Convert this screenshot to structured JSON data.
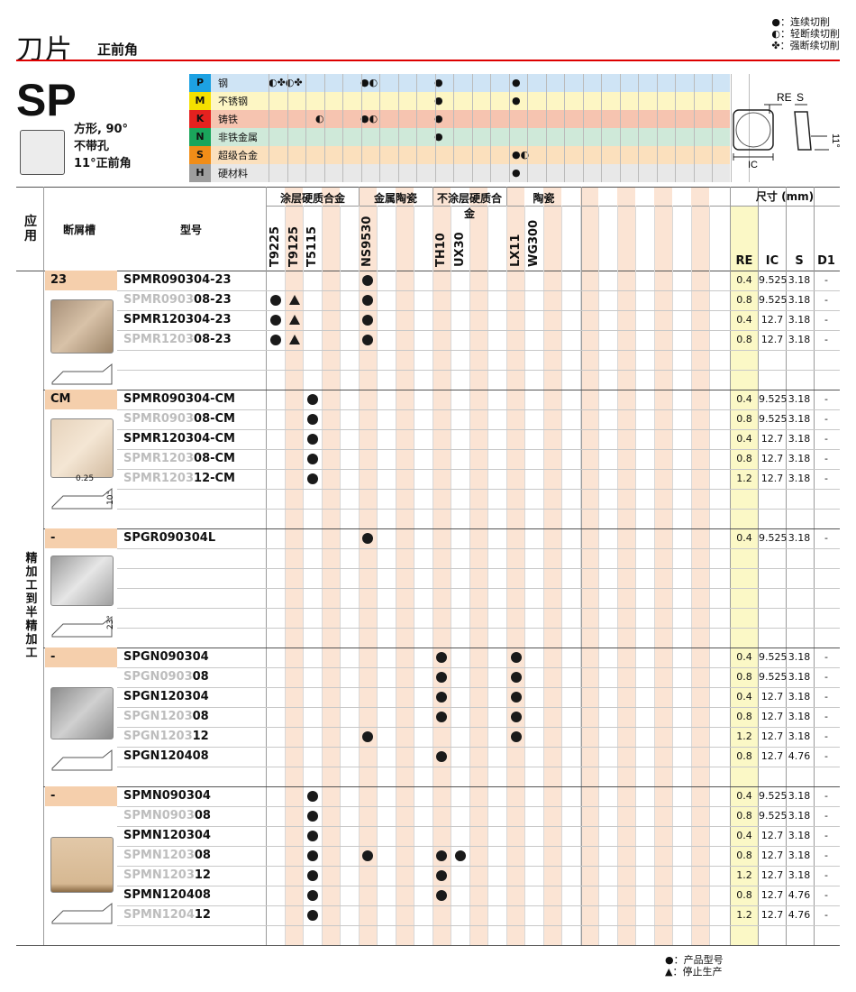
{
  "header": {
    "title": "刀片",
    "subtitle": "正前角"
  },
  "legend_top": [
    "●：连续切削",
    "◐：轻断续切削",
    "✤：强断续切削"
  ],
  "insert": {
    "code": "SP",
    "desc": [
      "方形, 90°",
      "不带孔",
      "11°正前角"
    ]
  },
  "materials": [
    {
      "code": "P",
      "name": "钢",
      "color": "#1da1e2"
    },
    {
      "code": "M",
      "name": "不锈钢",
      "color": "#f4e000"
    },
    {
      "code": "K",
      "name": "铸铁",
      "color": "#e5211f"
    },
    {
      "code": "N",
      "name": "非铁金属",
      "color": "#1aa55b"
    },
    {
      "code": "S",
      "name": "超级合金",
      "color": "#f18d18"
    },
    {
      "code": "H",
      "name": "硬材料",
      "color": "#9d9d9d"
    }
  ],
  "material_row_bg": [
    "#cfe4f5",
    "#fdf6c4",
    "#f6c4b0",
    "#cfe9d9",
    "#fbe0bd",
    "#e8e8e8"
  ],
  "material_marks": {
    "P": [
      "◐✤◐✤",
      "",
      "●◐",
      "●",
      "●"
    ],
    "M": [
      "",
      "",
      "",
      "●",
      "●"
    ],
    "K": [
      "",
      "◐",
      "●◐",
      "●",
      ""
    ],
    "N": [
      "",
      "",
      "",
      "●",
      ""
    ],
    "S": [
      "",
      "",
      "",
      "",
      "●◐"
    ],
    "H": [
      "",
      "",
      "",
      "",
      "●"
    ]
  },
  "schematic_labels": {
    "re": "RE",
    "s": "S",
    "ic": "IC",
    "angle": "11°"
  },
  "table_headers": {
    "application": "应用",
    "chipbreaker": "断屑槽",
    "model": "型号",
    "coated_carbide": "涂层硬质合金",
    "cermet": "金属陶瓷",
    "uncoated_carbide": "不涂层硬质合金",
    "ceramic": "陶瓷",
    "dimensions": "尺寸 (mm)",
    "dim_cols": [
      "RE",
      "IC",
      "S",
      "D1"
    ]
  },
  "grades": [
    "T9225",
    "T9125",
    "T5115",
    "NS9530",
    "TH10",
    "UX30",
    "LX11",
    "WG300"
  ],
  "application_label": "精加工到半精加工",
  "profile_labels": {
    "cm_width": "0.25",
    "cm_angle": "10°",
    "spgr_angle": "23°"
  },
  "groups": [
    {
      "breaker": "23",
      "rows": [
        {
          "pre": "SPMR090304-23",
          "post": "",
          "marks": [
            "",
            "",
            "",
            "●",
            "",
            "",
            "",
            ""
          ],
          "dims": [
            "0.4",
            "9.525",
            "3.18",
            "-"
          ]
        },
        {
          "pre": "SPMR0903",
          "post": "08-23",
          "grey": true,
          "marks": [
            "●",
            "▲",
            "",
            "●",
            "",
            "",
            "",
            ""
          ],
          "dims": [
            "0.8",
            "9.525",
            "3.18",
            "-"
          ]
        },
        {
          "pre": "SPMR120304-23",
          "post": "",
          "marks": [
            "●",
            "▲",
            "",
            "●",
            "",
            "",
            "",
            ""
          ],
          "dims": [
            "0.4",
            "12.7",
            "3.18",
            "-"
          ]
        },
        {
          "pre": "SPMR1203",
          "post": "08-23",
          "grey": true,
          "marks": [
            "●",
            "▲",
            "",
            "●",
            "",
            "",
            "",
            ""
          ],
          "dims": [
            "0.8",
            "12.7",
            "3.18",
            "-"
          ]
        }
      ]
    },
    {
      "breaker": "CM",
      "rows": [
        {
          "pre": "SPMR090304-CM",
          "post": "",
          "marks": [
            "",
            "",
            "●",
            "",
            "",
            "",
            "",
            ""
          ],
          "dims": [
            "0.4",
            "9.525",
            "3.18",
            "-"
          ]
        },
        {
          "pre": "SPMR0903",
          "post": "08-CM",
          "grey": true,
          "marks": [
            "",
            "",
            "●",
            "",
            "",
            "",
            "",
            ""
          ],
          "dims": [
            "0.8",
            "9.525",
            "3.18",
            "-"
          ]
        },
        {
          "pre": "SPMR120304-CM",
          "post": "",
          "marks": [
            "",
            "",
            "●",
            "",
            "",
            "",
            "",
            ""
          ],
          "dims": [
            "0.4",
            "12.7",
            "3.18",
            "-"
          ]
        },
        {
          "pre": "SPMR1203",
          "post": "08-CM",
          "grey": true,
          "marks": [
            "",
            "",
            "●",
            "",
            "",
            "",
            "",
            ""
          ],
          "dims": [
            "0.8",
            "12.7",
            "3.18",
            "-"
          ]
        },
        {
          "pre": "SPMR1203",
          "post": "12-CM",
          "grey": true,
          "marks": [
            "",
            "",
            "●",
            "",
            "",
            "",
            "",
            ""
          ],
          "dims": [
            "1.2",
            "12.7",
            "3.18",
            "-"
          ]
        }
      ]
    },
    {
      "breaker": "-",
      "rows": [
        {
          "pre": "SPGR090304L",
          "post": "",
          "marks": [
            "",
            "",
            "",
            "●",
            "",
            "",
            "",
            ""
          ],
          "dims": [
            "0.4",
            "9.525",
            "3.18",
            "-"
          ]
        }
      ]
    },
    {
      "breaker": "-",
      "rows": [
        {
          "pre": "SPGN090304",
          "post": "",
          "marks": [
            "",
            "",
            "",
            "",
            "●",
            "",
            "●",
            ""
          ],
          "dims": [
            "0.4",
            "9.525",
            "3.18",
            "-"
          ]
        },
        {
          "pre": "SPGN0903",
          "post": "08",
          "grey": true,
          "marks": [
            "",
            "",
            "",
            "",
            "●",
            "",
            "●",
            ""
          ],
          "dims": [
            "0.8",
            "9.525",
            "3.18",
            "-"
          ]
        },
        {
          "pre": "SPGN120304",
          "post": "",
          "marks": [
            "",
            "",
            "",
            "",
            "●",
            "",
            "●",
            ""
          ],
          "dims": [
            "0.4",
            "12.7",
            "3.18",
            "-"
          ]
        },
        {
          "pre": "SPGN1203",
          "post": "08",
          "grey": true,
          "marks": [
            "",
            "",
            "",
            "",
            "●",
            "",
            "●",
            ""
          ],
          "dims": [
            "0.8",
            "12.7",
            "3.18",
            "-"
          ]
        },
        {
          "pre": "SPGN1203",
          "post": "12",
          "grey": true,
          "marks": [
            "",
            "",
            "",
            "●",
            "",
            "",
            "●",
            ""
          ],
          "dims": [
            "1.2",
            "12.7",
            "3.18",
            "-"
          ]
        },
        {
          "pre": "SPGN120408",
          "post": "",
          "marks": [
            "",
            "",
            "",
            "",
            "●",
            "",
            "",
            ""
          ],
          "dims": [
            "0.8",
            "12.7",
            "4.76",
            "-"
          ]
        }
      ]
    },
    {
      "breaker": "-",
      "rows": [
        {
          "pre": "SPMN090304",
          "post": "",
          "marks": [
            "",
            "",
            "●",
            "",
            "",
            "",
            "",
            ""
          ],
          "dims": [
            "0.4",
            "9.525",
            "3.18",
            "-"
          ]
        },
        {
          "pre": "SPMN0903",
          "post": "08",
          "grey": true,
          "marks": [
            "",
            "",
            "●",
            "",
            "",
            "",
            "",
            ""
          ],
          "dims": [
            "0.8",
            "9.525",
            "3.18",
            "-"
          ]
        },
        {
          "pre": "SPMN120304",
          "post": "",
          "marks": [
            "",
            "",
            "●",
            "",
            "",
            "",
            "",
            ""
          ],
          "dims": [
            "0.4",
            "12.7",
            "3.18",
            "-"
          ]
        },
        {
          "pre": "SPMN1203",
          "post": "08",
          "grey": true,
          "marks": [
            "",
            "",
            "●",
            "●",
            "●",
            "●",
            "",
            ""
          ],
          "dims": [
            "0.8",
            "12.7",
            "3.18",
            "-"
          ]
        },
        {
          "pre": "SPMN1203",
          "post": "12",
          "grey": true,
          "marks": [
            "",
            "",
            "●",
            "",
            "●",
            "",
            "",
            ""
          ],
          "dims": [
            "1.2",
            "12.7",
            "3.18",
            "-"
          ]
        },
        {
          "pre": "SPMN120408",
          "post": "",
          "marks": [
            "",
            "",
            "●",
            "",
            "●",
            "",
            "",
            ""
          ],
          "dims": [
            "0.8",
            "12.7",
            "4.76",
            "-"
          ]
        },
        {
          "pre": "SPMN1204",
          "post": "12",
          "grey": true,
          "marks": [
            "",
            "",
            "●",
            "",
            "",
            "",
            "",
            ""
          ],
          "dims": [
            "1.2",
            "12.7",
            "4.76",
            "-"
          ]
        }
      ]
    }
  ],
  "legend_bottom": [
    "●：产品型号",
    "▲：停止生产"
  ]
}
